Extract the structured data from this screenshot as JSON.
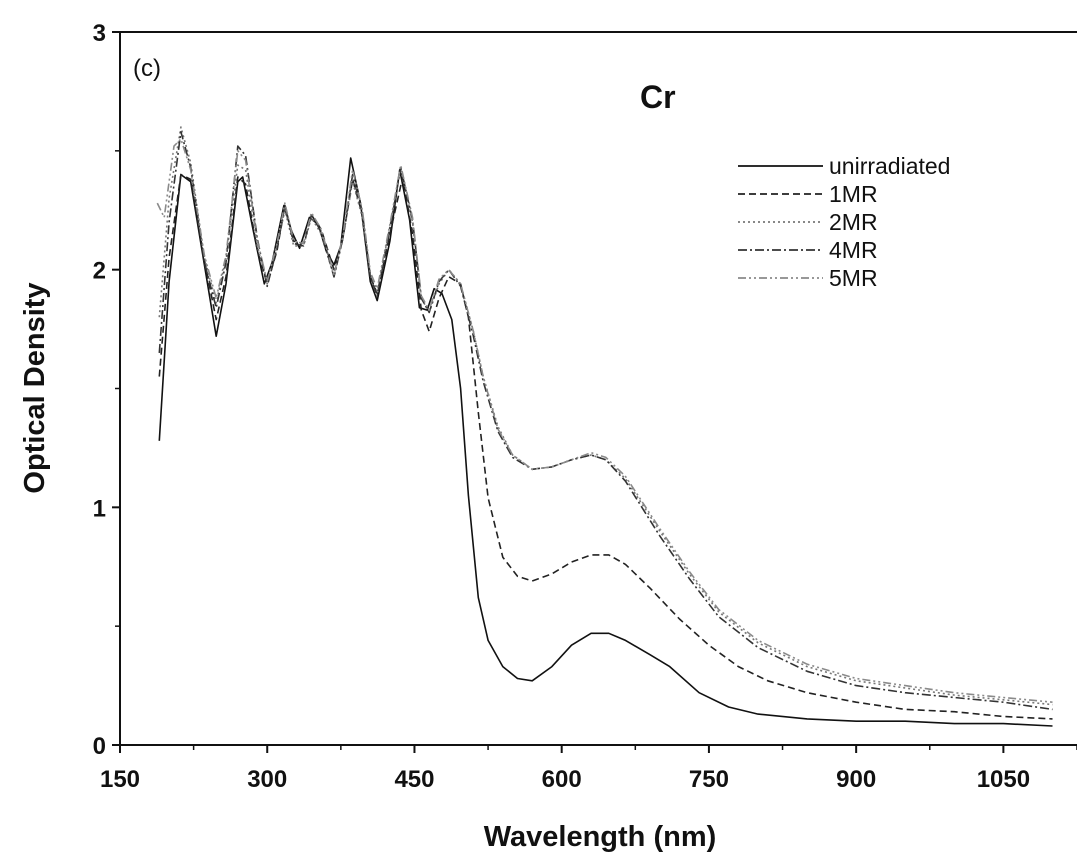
{
  "chart_data": {
    "type": "line",
    "panel_label": "(c)",
    "annotation": "Cr",
    "xlabel": "Wavelength (nm)",
    "ylabel": "Optical Density",
    "xlim": [
      150,
      1125
    ],
    "ylim": [
      0,
      3
    ],
    "x_ticks": [
      150,
      300,
      450,
      600,
      750,
      900,
      1050
    ],
    "y_ticks": [
      0,
      1,
      2,
      3
    ],
    "legend_position": "top-right",
    "grid": false,
    "series": [
      {
        "name": "unirradiated",
        "dash": "solid",
        "color": "#111111",
        "points": [
          [
            190,
            1.28
          ],
          [
            200,
            1.95
          ],
          [
            212,
            2.4
          ],
          [
            222,
            2.37
          ],
          [
            236,
            2.02
          ],
          [
            248,
            1.72
          ],
          [
            258,
            1.94
          ],
          [
            270,
            2.37
          ],
          [
            275,
            2.39
          ],
          [
            285,
            2.18
          ],
          [
            297,
            1.94
          ],
          [
            305,
            2.03
          ],
          [
            317,
            2.27
          ],
          [
            325,
            2.16
          ],
          [
            333,
            2.09
          ],
          [
            343,
            2.22
          ],
          [
            352,
            2.19
          ],
          [
            360,
            2.08
          ],
          [
            368,
            2.02
          ],
          [
            375,
            2.1
          ],
          [
            385,
            2.47
          ],
          [
            395,
            2.28
          ],
          [
            405,
            1.95
          ],
          [
            412,
            1.87
          ],
          [
            425,
            2.12
          ],
          [
            435,
            2.42
          ],
          [
            445,
            2.21
          ],
          [
            455,
            1.84
          ],
          [
            463,
            1.83
          ],
          [
            470,
            1.92
          ],
          [
            478,
            1.9
          ],
          [
            488,
            1.79
          ],
          [
            497,
            1.5
          ],
          [
            505,
            1.05
          ],
          [
            515,
            0.62
          ],
          [
            525,
            0.44
          ],
          [
            540,
            0.33
          ],
          [
            555,
            0.28
          ],
          [
            570,
            0.27
          ],
          [
            590,
            0.33
          ],
          [
            610,
            0.42
          ],
          [
            630,
            0.47
          ],
          [
            648,
            0.47
          ],
          [
            665,
            0.44
          ],
          [
            690,
            0.38
          ],
          [
            710,
            0.33
          ],
          [
            740,
            0.22
          ],
          [
            770,
            0.16
          ],
          [
            800,
            0.13
          ],
          [
            850,
            0.11
          ],
          [
            900,
            0.1
          ],
          [
            950,
            0.1
          ],
          [
            1000,
            0.09
          ],
          [
            1050,
            0.09
          ],
          [
            1100,
            0.08
          ]
        ]
      },
      {
        "name": "1MR",
        "dash": "dashed",
        "color": "#222222",
        "points": [
          [
            190,
            1.55
          ],
          [
            200,
            2.05
          ],
          [
            212,
            2.4
          ],
          [
            222,
            2.38
          ],
          [
            236,
            2.04
          ],
          [
            248,
            1.79
          ],
          [
            258,
            1.97
          ],
          [
            270,
            2.39
          ],
          [
            278,
            2.36
          ],
          [
            290,
            2.08
          ],
          [
            300,
            1.94
          ],
          [
            310,
            2.08
          ],
          [
            318,
            2.27
          ],
          [
            327,
            2.12
          ],
          [
            337,
            2.11
          ],
          [
            345,
            2.23
          ],
          [
            355,
            2.17
          ],
          [
            368,
            2.0
          ],
          [
            377,
            2.13
          ],
          [
            387,
            2.38
          ],
          [
            397,
            2.23
          ],
          [
            405,
            1.97
          ],
          [
            412,
            1.9
          ],
          [
            425,
            2.15
          ],
          [
            438,
            2.39
          ],
          [
            448,
            2.15
          ],
          [
            457,
            1.83
          ],
          [
            465,
            1.74
          ],
          [
            475,
            1.88
          ],
          [
            485,
            1.97
          ],
          [
            497,
            1.94
          ],
          [
            505,
            1.8
          ],
          [
            515,
            1.4
          ],
          [
            525,
            1.04
          ],
          [
            540,
            0.79
          ],
          [
            555,
            0.71
          ],
          [
            570,
            0.69
          ],
          [
            590,
            0.72
          ],
          [
            610,
            0.77
          ],
          [
            630,
            0.8
          ],
          [
            648,
            0.8
          ],
          [
            665,
            0.76
          ],
          [
            690,
            0.66
          ],
          [
            720,
            0.53
          ],
          [
            750,
            0.42
          ],
          [
            780,
            0.33
          ],
          [
            810,
            0.27
          ],
          [
            850,
            0.22
          ],
          [
            900,
            0.18
          ],
          [
            950,
            0.15
          ],
          [
            1000,
            0.14
          ],
          [
            1050,
            0.12
          ],
          [
            1100,
            0.11
          ]
        ]
      },
      {
        "name": "2MR",
        "dash": "dotted",
        "color": "#777777",
        "points": [
          [
            190,
            1.8
          ],
          [
            200,
            2.3
          ],
          [
            212,
            2.6
          ],
          [
            222,
            2.45
          ],
          [
            236,
            2.05
          ],
          [
            248,
            1.86
          ],
          [
            258,
            2.05
          ],
          [
            270,
            2.44
          ],
          [
            278,
            2.42
          ],
          [
            290,
            2.1
          ],
          [
            300,
            1.94
          ],
          [
            310,
            2.1
          ],
          [
            318,
            2.25
          ],
          [
            327,
            2.1
          ],
          [
            337,
            2.1
          ],
          [
            345,
            2.22
          ],
          [
            355,
            2.15
          ],
          [
            368,
            1.97
          ],
          [
            377,
            2.13
          ],
          [
            387,
            2.37
          ],
          [
            397,
            2.22
          ],
          [
            405,
            1.98
          ],
          [
            412,
            1.91
          ],
          [
            425,
            2.18
          ],
          [
            436,
            2.43
          ],
          [
            448,
            2.2
          ],
          [
            457,
            1.88
          ],
          [
            465,
            1.82
          ],
          [
            475,
            1.94
          ],
          [
            485,
            2.0
          ],
          [
            497,
            1.94
          ],
          [
            510,
            1.74
          ],
          [
            520,
            1.55
          ],
          [
            535,
            1.34
          ],
          [
            550,
            1.22
          ],
          [
            570,
            1.16
          ],
          [
            590,
            1.17
          ],
          [
            610,
            1.2
          ],
          [
            630,
            1.22
          ],
          [
            645,
            1.2
          ],
          [
            665,
            1.12
          ],
          [
            700,
            0.9
          ],
          [
            730,
            0.72
          ],
          [
            760,
            0.56
          ],
          [
            800,
            0.43
          ],
          [
            850,
            0.33
          ],
          [
            900,
            0.27
          ],
          [
            950,
            0.24
          ],
          [
            1000,
            0.21
          ],
          [
            1050,
            0.19
          ],
          [
            1100,
            0.17
          ]
        ]
      },
      {
        "name": "4MR",
        "dash": "dash-dot",
        "color": "#333333",
        "points": [
          [
            190,
            1.65
          ],
          [
            200,
            2.2
          ],
          [
            212,
            2.58
          ],
          [
            222,
            2.43
          ],
          [
            236,
            2.03
          ],
          [
            248,
            1.84
          ],
          [
            258,
            2.03
          ],
          [
            270,
            2.52
          ],
          [
            278,
            2.48
          ],
          [
            290,
            2.13
          ],
          [
            300,
            1.93
          ],
          [
            310,
            2.09
          ],
          [
            318,
            2.27
          ],
          [
            327,
            2.11
          ],
          [
            337,
            2.1
          ],
          [
            345,
            2.23
          ],
          [
            355,
            2.16
          ],
          [
            368,
            1.97
          ],
          [
            377,
            2.13
          ],
          [
            387,
            2.4
          ],
          [
            397,
            2.24
          ],
          [
            405,
            1.97
          ],
          [
            412,
            1.89
          ],
          [
            425,
            2.17
          ],
          [
            436,
            2.43
          ],
          [
            448,
            2.21
          ],
          [
            457,
            1.88
          ],
          [
            465,
            1.82
          ],
          [
            475,
            1.95
          ],
          [
            485,
            2.0
          ],
          [
            497,
            1.93
          ],
          [
            510,
            1.72
          ],
          [
            520,
            1.53
          ],
          [
            535,
            1.32
          ],
          [
            550,
            1.21
          ],
          [
            570,
            1.16
          ],
          [
            590,
            1.17
          ],
          [
            610,
            1.2
          ],
          [
            630,
            1.22
          ],
          [
            645,
            1.2
          ],
          [
            665,
            1.11
          ],
          [
            700,
            0.88
          ],
          [
            730,
            0.7
          ],
          [
            760,
            0.54
          ],
          [
            800,
            0.41
          ],
          [
            850,
            0.31
          ],
          [
            900,
            0.25
          ],
          [
            950,
            0.22
          ],
          [
            1000,
            0.2
          ],
          [
            1050,
            0.18
          ],
          [
            1100,
            0.15
          ]
        ]
      },
      {
        "name": "5MR",
        "dash": "dash-dot-dot",
        "color": "#8a8a8a",
        "points": [
          [
            188,
            2.28
          ],
          [
            195,
            2.22
          ],
          [
            205,
            2.52
          ],
          [
            212,
            2.55
          ],
          [
            222,
            2.42
          ],
          [
            236,
            2.06
          ],
          [
            248,
            1.88
          ],
          [
            258,
            2.06
          ],
          [
            270,
            2.5
          ],
          [
            278,
            2.46
          ],
          [
            290,
            2.12
          ],
          [
            300,
            1.95
          ],
          [
            310,
            2.11
          ],
          [
            318,
            2.28
          ],
          [
            327,
            2.12
          ],
          [
            337,
            2.11
          ],
          [
            345,
            2.24
          ],
          [
            355,
            2.17
          ],
          [
            368,
            1.98
          ],
          [
            377,
            2.14
          ],
          [
            387,
            2.42
          ],
          [
            397,
            2.25
          ],
          [
            405,
            1.99
          ],
          [
            412,
            1.92
          ],
          [
            425,
            2.19
          ],
          [
            436,
            2.44
          ],
          [
            448,
            2.22
          ],
          [
            457,
            1.89
          ],
          [
            465,
            1.83
          ],
          [
            475,
            1.96
          ],
          [
            485,
            2.0
          ],
          [
            497,
            1.94
          ],
          [
            510,
            1.74
          ],
          [
            520,
            1.55
          ],
          [
            535,
            1.33
          ],
          [
            550,
            1.22
          ],
          [
            570,
            1.16
          ],
          [
            590,
            1.17
          ],
          [
            610,
            1.2
          ],
          [
            630,
            1.23
          ],
          [
            645,
            1.21
          ],
          [
            665,
            1.13
          ],
          [
            700,
            0.91
          ],
          [
            730,
            0.73
          ],
          [
            760,
            0.57
          ],
          [
            800,
            0.44
          ],
          [
            850,
            0.34
          ],
          [
            900,
            0.28
          ],
          [
            950,
            0.25
          ],
          [
            1000,
            0.22
          ],
          [
            1050,
            0.2
          ],
          [
            1100,
            0.18
          ]
        ]
      }
    ]
  }
}
